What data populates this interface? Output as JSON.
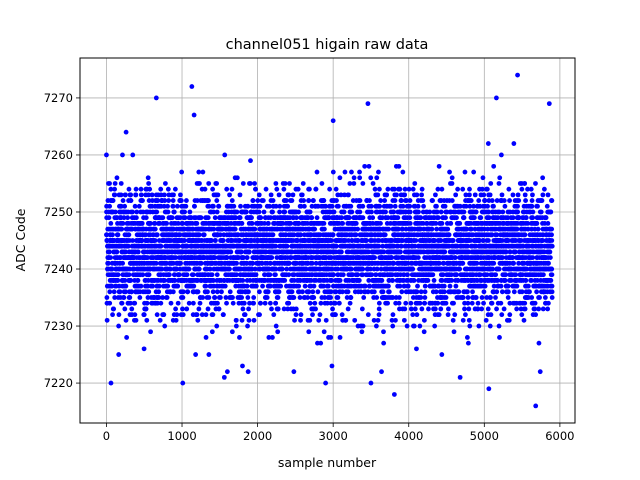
{
  "chart_data": {
    "type": "scatter",
    "title": "channel051 higain raw data",
    "xlabel": "sample number",
    "ylabel": "ADC Code",
    "xlim": [
      -350,
      6200
    ],
    "ylim": [
      7213,
      7277
    ],
    "xticks": [
      0,
      1000,
      2000,
      3000,
      4000,
      5000,
      6000
    ],
    "yticks": [
      7220,
      7230,
      7240,
      7250,
      7260,
      7270
    ],
    "grid": true,
    "marker_color": "#0000ff",
    "n_points": 5900,
    "y_core_range": [
      7230,
      7256
    ],
    "highlighted_outliers": [
      {
        "x": 0,
        "y": 7260
      },
      {
        "x": 60,
        "y": 7220
      },
      {
        "x": 260,
        "y": 7264
      },
      {
        "x": 660,
        "y": 7270
      },
      {
        "x": 1010,
        "y": 7220
      },
      {
        "x": 1130,
        "y": 7272
      },
      {
        "x": 1160,
        "y": 7267
      },
      {
        "x": 1560,
        "y": 7221
      },
      {
        "x": 1600,
        "y": 7222
      },
      {
        "x": 1800,
        "y": 7223
      },
      {
        "x": 2480,
        "y": 7222
      },
      {
        "x": 2900,
        "y": 7220
      },
      {
        "x": 3000,
        "y": 7266
      },
      {
        "x": 3460,
        "y": 7269
      },
      {
        "x": 3500,
        "y": 7220
      },
      {
        "x": 3640,
        "y": 7222
      },
      {
        "x": 3810,
        "y": 7218
      },
      {
        "x": 4680,
        "y": 7221
      },
      {
        "x": 5060,
        "y": 7219
      },
      {
        "x": 5160,
        "y": 7270
      },
      {
        "x": 5440,
        "y": 7274
      },
      {
        "x": 5680,
        "y": 7216
      },
      {
        "x": 5740,
        "y": 7222
      },
      {
        "x": 5860,
        "y": 7269
      }
    ]
  }
}
